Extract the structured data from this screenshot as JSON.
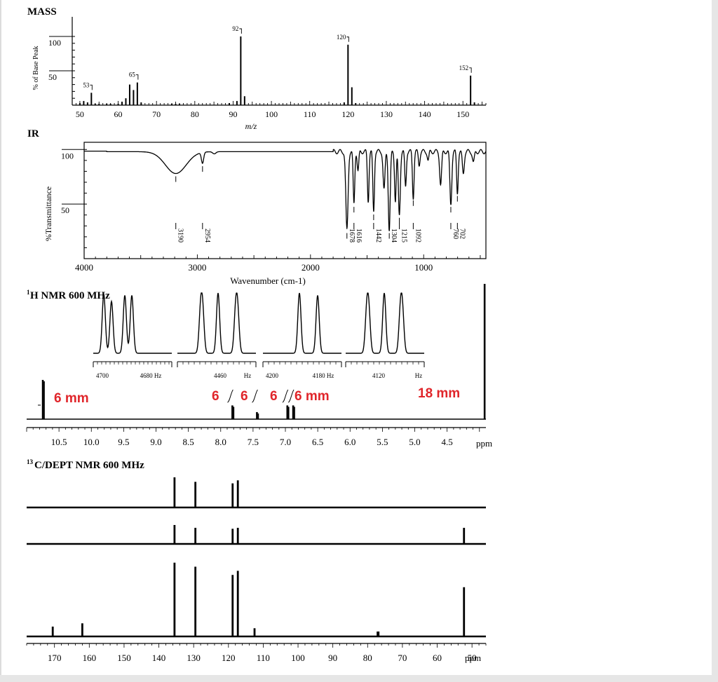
{
  "mass": {
    "title": "MASS",
    "ylabel": "% of Base Peak",
    "xlabel": "m/z",
    "ticks_y": [
      {
        "value": 100,
        "label": "100"
      },
      {
        "value": 50,
        "label": "50"
      }
    ],
    "xticks": [
      50,
      60,
      70,
      80,
      90,
      100,
      110,
      120,
      130,
      140,
      150
    ],
    "chart_data": {
      "type": "bar",
      "xlim": [
        48,
        156
      ],
      "ylim": [
        0,
        100
      ],
      "peaks": [
        {
          "x": 50,
          "y": 3
        },
        {
          "x": 51,
          "y": 6
        },
        {
          "x": 52,
          "y": 4
        },
        {
          "x": 53,
          "y": 18,
          "label": "53"
        },
        {
          "x": 54,
          "y": 2
        },
        {
          "x": 55,
          "y": 2
        },
        {
          "x": 57,
          "y": 2
        },
        {
          "x": 58,
          "y": 2
        },
        {
          "x": 60,
          "y": 2
        },
        {
          "x": 61,
          "y": 5
        },
        {
          "x": 62,
          "y": 10
        },
        {
          "x": 63,
          "y": 30
        },
        {
          "x": 64,
          "y": 22
        },
        {
          "x": 65,
          "y": 33,
          "label": "65"
        },
        {
          "x": 66,
          "y": 4
        },
        {
          "x": 74,
          "y": 2
        },
        {
          "x": 75,
          "y": 2
        },
        {
          "x": 76,
          "y": 2
        },
        {
          "x": 89,
          "y": 3
        },
        {
          "x": 91,
          "y": 6
        },
        {
          "x": 92,
          "y": 100,
          "label": "92"
        },
        {
          "x": 93,
          "y": 13
        },
        {
          "x": 119,
          "y": 4
        },
        {
          "x": 120,
          "y": 88,
          "label": "120"
        },
        {
          "x": 121,
          "y": 26
        },
        {
          "x": 122,
          "y": 3
        },
        {
          "x": 152,
          "y": 43,
          "label": "152"
        },
        {
          "x": 153,
          "y": 4
        }
      ]
    }
  },
  "ir": {
    "title": "IR",
    "ylabel": "%Transmittance",
    "xlabel": "Wavenumber (cm-1)",
    "ticks_y": [
      {
        "value": 100,
        "label": "100"
      },
      {
        "value": 50,
        "label": "50"
      }
    ],
    "xticks": [
      4000,
      3000,
      2000,
      1000
    ],
    "chart_data": {
      "type": "line",
      "xlim": [
        4000,
        450
      ],
      "ylim": [
        0,
        105
      ],
      "bands": [
        {
          "x": 3190,
          "depth": 20,
          "width": 130,
          "label": "3190"
        },
        {
          "x": 2954,
          "depth": 10,
          "width": 14,
          "label": "2954"
        },
        {
          "x": 2850,
          "depth": 2,
          "width": 20
        },
        {
          "x": 1678,
          "depth": 72,
          "width": 14,
          "label": "1678"
        },
        {
          "x": 1616,
          "depth": 48,
          "width": 10,
          "label": "1616"
        },
        {
          "x": 1580,
          "depth": 18,
          "width": 10
        },
        {
          "x": 1490,
          "depth": 45,
          "width": 10
        },
        {
          "x": 1442,
          "depth": 55,
          "width": 10,
          "label": "1442"
        },
        {
          "x": 1350,
          "depth": 35,
          "width": 12
        },
        {
          "x": 1304,
          "depth": 72,
          "width": 12,
          "label": "1304"
        },
        {
          "x": 1250,
          "depth": 45,
          "width": 10
        },
        {
          "x": 1215,
          "depth": 58,
          "width": 12,
          "label": "1215"
        },
        {
          "x": 1160,
          "depth": 32,
          "width": 10
        },
        {
          "x": 1092,
          "depth": 42,
          "width": 10,
          "label": "1092"
        },
        {
          "x": 1040,
          "depth": 12,
          "width": 10
        },
        {
          "x": 960,
          "depth": 8,
          "width": 10
        },
        {
          "x": 850,
          "depth": 30,
          "width": 12
        },
        {
          "x": 760,
          "depth": 48,
          "width": 12,
          "label": "760"
        },
        {
          "x": 702,
          "depth": 38,
          "width": 10,
          "label": "702"
        },
        {
          "x": 650,
          "depth": 20,
          "width": 12
        },
        {
          "x": 560,
          "depth": 10,
          "width": 12
        }
      ]
    }
  },
  "h_nmr": {
    "title_sup": "1",
    "title": "H NMR 600 MHz",
    "xlabel": "ppm",
    "xticks": [
      "10.5",
      "10.0",
      "9.5",
      "9.0",
      "8.5",
      "8.0",
      "7.5",
      "7.0",
      "6.5",
      "6.0",
      "5.5",
      "5.0",
      "4.5"
    ],
    "xtick_values": [
      10.5,
      10.0,
      9.5,
      9.0,
      8.5,
      8.0,
      7.5,
      7.0,
      6.5,
      6.0,
      5.5,
      5.0,
      4.5
    ],
    "chart_data": {
      "type": "line",
      "xlim": [
        11.0,
        3.9
      ],
      "signals": [
        {
          "ppm": 10.75,
          "height": 1.0
        },
        {
          "ppm": 7.82,
          "height": 0.35
        },
        {
          "ppm": 7.44,
          "height": 0.18
        },
        {
          "ppm": 6.97,
          "height": 0.35
        },
        {
          "ppm": 6.88,
          "height": 0.35
        },
        {
          "ppm": 3.92,
          "height": 4.5
        }
      ],
      "insets": [
        {
          "ticks": [
            "4700",
            "4680 Hz"
          ],
          "pattern": "doublet-of-doublets"
        },
        {
          "ticks": [
            "4460",
            "Hz"
          ],
          "pattern": "triplet-multiplet"
        },
        {
          "ticks": [
            "4200",
            "4180 Hz"
          ],
          "pattern": "doublet"
        },
        {
          "ticks": [
            "4120",
            "Hz"
          ],
          "pattern": "triplet"
        }
      ]
    },
    "annotations": {
      "int_a": "6 mm",
      "int_b": "6",
      "int_c": "6",
      "int_d": "6",
      "int_e": "6 mm",
      "int_f": "18 mm",
      "color": "#e0252a"
    }
  },
  "c_nmr": {
    "title_sup": "13",
    "title": "C/DEPT NMR 600 MHz",
    "xlabel": "ppm",
    "xticks": [
      "170",
      "160",
      "150",
      "140",
      "130",
      "120",
      "110",
      "100",
      "90",
      "80",
      "70",
      "60",
      "50"
    ],
    "xtick_values": [
      170,
      160,
      150,
      140,
      130,
      120,
      110,
      100,
      90,
      80,
      70,
      60,
      50
    ],
    "chart_data": {
      "type": "bar",
      "xlim": [
        178,
        46
      ],
      "dept90": [
        {
          "ppm": 135.5,
          "h": 1.0
        },
        {
          "ppm": 129.5,
          "h": 0.85
        },
        {
          "ppm": 118.8,
          "h": 0.8
        },
        {
          "ppm": 117.3,
          "h": 0.9
        }
      ],
      "dept135": [
        {
          "ppm": 135.5,
          "h": 1.0
        },
        {
          "ppm": 129.5,
          "h": 0.85
        },
        {
          "ppm": 118.8,
          "h": 0.8
        },
        {
          "ppm": 117.3,
          "h": 0.85
        },
        {
          "ppm": 52.3,
          "h": 0.85
        }
      ],
      "broadband": [
        {
          "ppm": 170.5,
          "h": 0.12
        },
        {
          "ppm": 162.0,
          "h": 0.16
        },
        {
          "ppm": 135.5,
          "h": 0.9
        },
        {
          "ppm": 129.5,
          "h": 0.85
        },
        {
          "ppm": 118.8,
          "h": 0.75
        },
        {
          "ppm": 117.3,
          "h": 0.8
        },
        {
          "ppm": 112.5,
          "h": 0.1
        },
        {
          "ppm": 77.0,
          "h": 0.06
        },
        {
          "ppm": 52.3,
          "h": 0.6
        }
      ]
    }
  }
}
